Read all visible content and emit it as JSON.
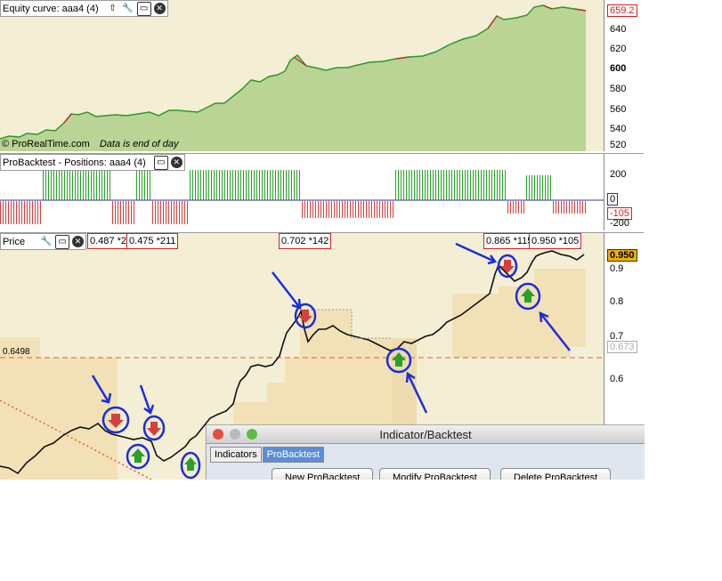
{
  "colors": {
    "plot_bg": "#f4eed4",
    "equity_fill": "#b9d494",
    "equity_line": "#2a9a2a",
    "pos_long": "#2aa02a",
    "pos_short": "#d44040",
    "signal_circle": "#1a2ee0",
    "arrow": "#1a2ee0"
  },
  "equity": {
    "header": "Equity curve: aaa4 (4)",
    "header_icons": [
      "up-arrow-icon",
      "wrench-icon",
      "window-icon",
      "close-icon"
    ],
    "copyright": "© ProRealTime.com",
    "note": "Data is end of day",
    "last_value": "659.2",
    "axis_labels": [
      "640",
      "620",
      "600",
      "580",
      "560",
      "540",
      "520"
    ]
  },
  "positions": {
    "header": "ProBacktest - Positions: aaa4 (4)",
    "header_icons": [
      "window-icon",
      "close-icon"
    ],
    "axis_labels": [
      "200",
      "0",
      "-105",
      "-200"
    ]
  },
  "price": {
    "header": "Price",
    "header_icons": [
      "wrench-icon",
      "window-icon",
      "close-icon"
    ],
    "level_label": "0.6498",
    "last_value": "0.950",
    "marker_value": "0.673",
    "axis_labels": [
      "0.9",
      "0.8",
      "0.7",
      "0.6"
    ],
    "trade_tags": [
      "0.487 *20",
      "0.475 *211",
      "0.702 *142",
      "0.865 *115",
      "0.950 *105"
    ]
  },
  "dialog": {
    "title": "Indicator/Backtest",
    "tabs": [
      "Indicators",
      "ProBacktest"
    ],
    "buttons": [
      "New ProBacktest",
      "Modify ProBacktest",
      "Delete ProBacktest"
    ]
  }
}
